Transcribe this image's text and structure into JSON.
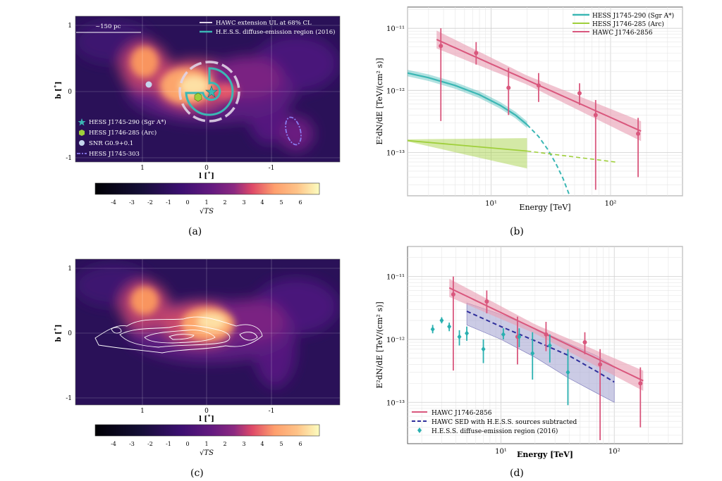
{
  "colors": {
    "hess_sgr": "#3bb7b4",
    "hess_arc": "#9fcf3a",
    "hawc": "#d9577d",
    "hawc_band": "#e9a3b7",
    "hawc_sub": "#2f2f9c",
    "hawc_sub_band": "#a9a8d3",
    "hess_diffuse": "#2ab0b0",
    "ellipse": "#8a7cf0"
  },
  "captions": {
    "a": "(a)",
    "b": "(b)",
    "c": "(c)",
    "d": "(d)"
  },
  "map": {
    "xlabel": "l [˚]",
    "ylabel": "b [˚]",
    "xticks": [
      "1",
      "0",
      "-1"
    ],
    "yticks": [
      "1",
      "0",
      "-1"
    ],
    "scale_label": "~150 pc",
    "colorbar_ticks": [
      "-4",
      "-3",
      "-2",
      "-1",
      "0",
      "1",
      "2",
      "3",
      "4",
      "5",
      "6"
    ],
    "colorbar_label": "√TS",
    "colorbar_min": -5,
    "colorbar_max": 7
  },
  "panel_a": {
    "legend_top": [
      {
        "label": "HAWC extension UL at 68% CL",
        "color": "#e0d4e8"
      },
      {
        "label": "H.E.S.S. diffuse-emission region (2016)",
        "color": "#3bb7b4"
      }
    ],
    "legend_bottom": [
      {
        "label": "HESS J1745-290 (Sgr A*)",
        "marker": "star-icon",
        "color": "#3bb7b4"
      },
      {
        "label": "HESS J1746-285 (Arc)",
        "marker": "hexagon-icon",
        "color": "#9fcf3a"
      },
      {
        "label": "SNR G0.9+0.1",
        "marker": "circle-icon",
        "color": "#c5d6ee"
      },
      {
        "label": "HESS J1745-303",
        "marker": "dashdot-line-icon",
        "color": "#8a7cf0"
      }
    ]
  },
  "chart_data": [
    {
      "type": "line",
      "panel": "b",
      "xlabel": "Energy [TeV]",
      "ylabel": "E²dN/dE [TeV/(cm² s)]",
      "xscale": "log",
      "yscale": "log",
      "xlim": [
        2,
        400
      ],
      "ylim": [
        2e-14,
        2.2e-11
      ],
      "xtick_labels": [
        "10¹",
        "10²"
      ],
      "ytick_labels": [
        "10⁻¹¹",
        "10⁻¹²",
        "10⁻¹³"
      ],
      "grid": true,
      "legend_position": "top-right",
      "series": [
        {
          "name": "HESS J1745-290 (Sgr A*)",
          "kind": "cutoff-power-law",
          "x": [
            2,
            3,
            5,
            8,
            12,
            16,
            20,
            25,
            30,
            35,
            40,
            45
          ],
          "y": [
            1.9e-12,
            1.6e-12,
            1.2e-12,
            8.5e-13,
            5.7e-13,
            4e-13,
            2.8e-13,
            1.8e-13,
            1.1e-13,
            6.5e-14,
            3.8e-14,
            2.1e-14
          ],
          "solid_until": 20
        },
        {
          "name": "HESS J1746-285 (Arc)",
          "kind": "power-law",
          "x": [
            2,
            20,
            110
          ],
          "y": [
            1.55e-13,
            1.05e-13,
            7e-14
          ],
          "solid_until": 20
        },
        {
          "name": "HAWC J1746-2856",
          "kind": "power-law",
          "x": [
            3.5,
            180
          ],
          "y": [
            6.6e-12,
            2.2e-13
          ],
          "points": {
            "x": [
              3.8,
              7.5,
              14,
              25,
              55,
              75,
              170
            ],
            "y": [
              5.2e-12,
              4e-12,
              1.1e-12,
              1.2e-12,
              9e-13,
              4e-13,
              2e-13
            ],
            "ylo": [
              3.2e-13,
              2.6e-12,
              4e-13,
              6.5e-13,
              5.8e-13,
              2.5e-14,
              4e-14
            ],
            "yhi": [
              1e-11,
              6e-12,
              2.3e-12,
              1.9e-12,
              1.3e-12,
              7e-13,
              3.6e-13
            ]
          }
        }
      ]
    },
    {
      "type": "line",
      "panel": "d",
      "xlabel": "Energy [TeV]",
      "ylabel": "E²dN/dE [TeV/(cm² s)]",
      "xscale": "log",
      "yscale": "log",
      "xlim": [
        1.5,
        400
      ],
      "ylim": [
        2.2e-14,
        3e-11
      ],
      "xtick_labels": [
        "10¹",
        "10²"
      ],
      "ytick_labels": [
        "10⁻¹¹",
        "10⁻¹²",
        "10⁻¹³"
      ],
      "grid": true,
      "legend_position": "bottom-left",
      "series": [
        {
          "name": "HAWC J1746-2856",
          "kind": "power-law",
          "x": [
            3.5,
            180
          ],
          "y": [
            6.6e-12,
            2.2e-13
          ],
          "points": {
            "x": [
              3.8,
              7.5,
              14,
              25,
              55,
              75,
              170
            ],
            "y": [
              5.2e-12,
              4e-12,
              1.1e-12,
              1.2e-12,
              9e-13,
              4e-13,
              2e-13
            ],
            "ylo": [
              3.2e-13,
              2.6e-12,
              4e-13,
              6.5e-13,
              5.8e-13,
              2.5e-14,
              4e-14
            ],
            "yhi": [
              1e-11,
              6e-12,
              2.3e-12,
              1.9e-12,
              1.3e-12,
              7e-13,
              3.6e-13
            ]
          }
        },
        {
          "name": "HAWC SED with H.E.S.S. sources subtracted",
          "kind": "dashed",
          "x": [
            5,
            10,
            20,
            40,
            70,
            100
          ],
          "y": [
            2.8e-12,
            1.6e-12,
            9.5e-13,
            5.5e-13,
            3.1e-13,
            2.1e-13
          ],
          "band_lo": [
            1.7e-12,
            1e-12,
            5.2e-13,
            2.4e-13,
            1.4e-13,
            1e-13
          ],
          "band_hi": [
            3.8e-12,
            2.5e-12,
            1.5e-12,
            8.5e-13,
            5.5e-13,
            3.7e-13
          ]
        },
        {
          "name": "H.E.S.S. diffuse-emission region (2016)",
          "kind": "points",
          "points": {
            "x": [
              2.5,
              3.0,
              3.5,
              4.3,
              5.0,
              7.0,
              10.5,
              14.5,
              19,
              27,
              39
            ],
            "y": [
              1.45e-12,
              2e-12,
              1.6e-12,
              1.1e-12,
              1.25e-12,
              7e-13,
              1.2e-12,
              1.1e-12,
              6e-13,
              8e-13,
              3e-13
            ],
            "ylo": [
              1.25e-12,
              1.8e-12,
              1.35e-12,
              8e-13,
              9.5e-13,
              4.2e-13,
              1e-12,
              7.5e-13,
              2.3e-13,
              4.3e-13,
              9e-14
            ],
            "yhi": [
              1.7e-12,
              2.25e-12,
              1.85e-12,
              1.4e-12,
              1.6e-12,
              1e-12,
              1.5e-12,
              1.5e-12,
              1.3e-12,
              1.2e-12,
              7e-13
            ]
          }
        }
      ]
    }
  ]
}
